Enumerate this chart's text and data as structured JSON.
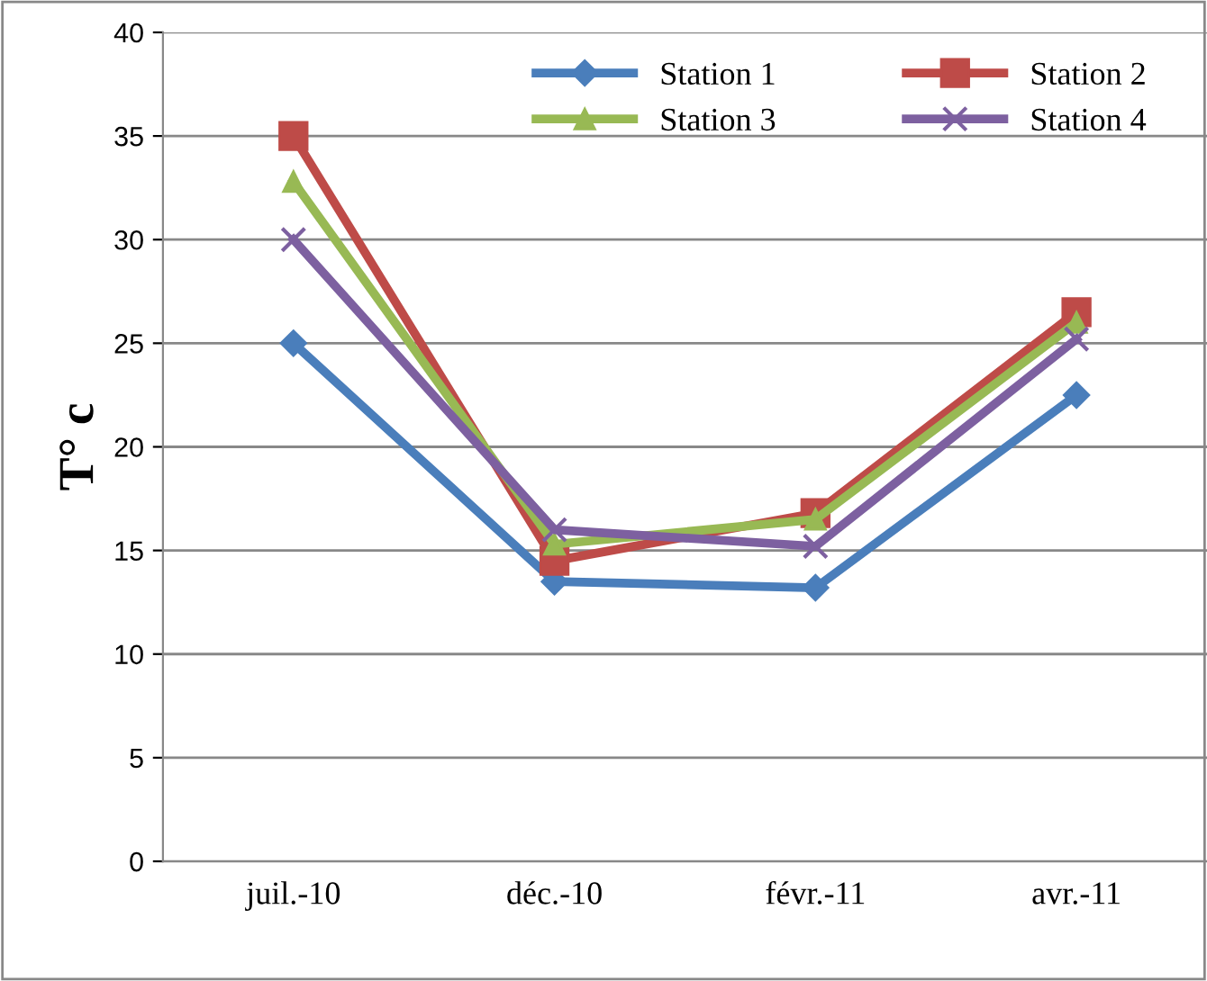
{
  "chart_data": {
    "type": "line",
    "ylabel": "T° c",
    "categories": [
      "juil.-10",
      "déc.-10",
      "févr.-11",
      "avr.-11"
    ],
    "series": [
      {
        "name": "Station 1",
        "color": "#4a7ebb",
        "marker": "diamond",
        "values": [
          25,
          13.5,
          13.2,
          22.5
        ]
      },
      {
        "name": "Station 2",
        "color": "#be4b48",
        "marker": "square",
        "values": [
          35,
          14.5,
          16.8,
          26.5
        ]
      },
      {
        "name": "Station 3",
        "color": "#98b954",
        "marker": "triangle",
        "values": [
          32.8,
          15.3,
          16.5,
          26.0
        ]
      },
      {
        "name": "Station 4",
        "color": "#7d60a0",
        "marker": "cross",
        "values": [
          30,
          16.0,
          15.2,
          25.2
        ]
      }
    ],
    "ylim": [
      0,
      40
    ],
    "yticks": [
      0,
      5,
      10,
      15,
      20,
      25,
      30,
      35,
      40
    ],
    "grid": "y",
    "legend": "top right",
    "line_style": "solid"
  }
}
